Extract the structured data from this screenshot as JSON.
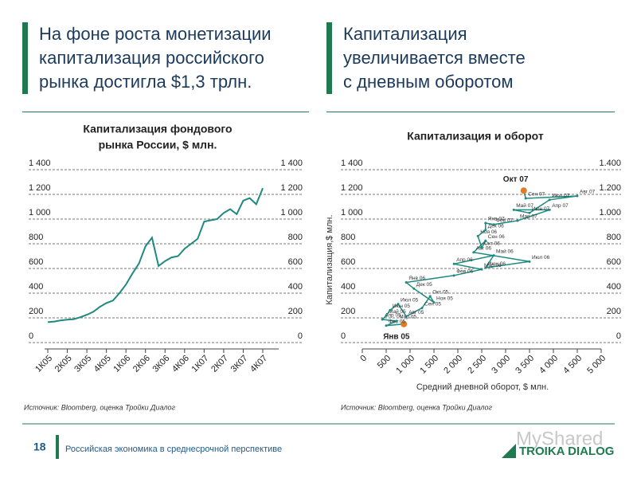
{
  "slide": {
    "left_heading": [
      "На фоне роста монетизации",
      "капитализация российского",
      "рынка достигла $1,3 трлн."
    ],
    "right_heading": [
      "Капитализация",
      "увеличивается вместе",
      "с дневным оборотом"
    ],
    "page_number": "18",
    "footer": "Российская экономика в среднесрочной перспективе",
    "watermark": "MyShared",
    "logo": "TROIKA DIALOG"
  },
  "chart_data": [
    {
      "type": "line",
      "title": [
        "Капитализация фондового",
        "рынка России, $ млн."
      ],
      "source": "Источник: Bloomberg, оценка Тройки Диалог",
      "categories": [
        "1К05",
        null,
        null,
        "2К05",
        null,
        null,
        "3К05",
        null,
        null,
        "4К05",
        null,
        null,
        "1К06",
        null,
        null,
        "2К06",
        null,
        null,
        "3К06",
        null,
        null,
        "4К06",
        null,
        null,
        "1К07",
        null,
        null,
        "2К07",
        null,
        null,
        "3К07",
        null,
        null,
        "4К07"
      ],
      "values": [
        165,
        170,
        180,
        185,
        190,
        205,
        225,
        250,
        290,
        320,
        340,
        400,
        470,
        560,
        640,
        780,
        850,
        620,
        660,
        690,
        700,
        760,
        800,
        840,
        980,
        990,
        1000,
        1050,
        1080,
        1040,
        1150,
        1170,
        1120,
        1250
      ],
      "color": "#1d8a80",
      "grid": true,
      "ylim": [
        0,
        1400
      ],
      "yticks": [
        0,
        200,
        400,
        600,
        800,
        {
          "value": 1000,
          "label": "1 000"
        },
        {
          "value": 1200,
          "label": "1 200"
        },
        {
          "value": 1400,
          "label": "1 400"
        }
      ],
      "y2lim": [
        0,
        1400
      ],
      "y2ticks": [
        0,
        200,
        400,
        600,
        800,
        {
          "value": 1000,
          "label": "1 000"
        },
        {
          "value": 1200,
          "label": "1 200"
        },
        {
          "value": 1400,
          "label": "1 400"
        }
      ]
    },
    {
      "type": "scatter",
      "title": "Капитализация и оборот",
      "source": "Источник: Bloomberg, оценка Тройки Диалог",
      "xlabel": "Средний дневной оборот, $ млн.",
      "ylabel": "Капитализация,$ млн.",
      "point_labels": [
        "Янв 05",
        "Фев 05",
        "Мар 05",
        "Апр 05",
        "Май 05",
        "Июн 05",
        "Июл 05",
        "Авг 05",
        "Сен 05",
        "Окт 05",
        "Ноя 05",
        "Дек 05",
        "Янв 06",
        "Фев 06",
        "Мар 06",
        "Апр 06",
        "Май 06",
        "Июн 06",
        "Июл 06",
        "Авг 06",
        "Сен 06",
        "Окт 06",
        "Ноя 06",
        "Дек 06",
        "Янв 07",
        "Фев 07",
        "Мар 07",
        "Апр 07",
        "Май 07",
        "Июн 07",
        "Июл 07",
        "Авг 07",
        "Сен 07",
        "Окт 07"
      ],
      "x": [
        870,
        500,
        720,
        420,
        500,
        580,
        750,
        920,
        1250,
        1420,
        1500,
        1080,
        920,
        1920,
        2500,
        1920,
        2750,
        2580,
        3500,
        2330,
        2580,
        2500,
        2420,
        2580,
        2580,
        2750,
        3250,
        3920,
        3170,
        3500,
        3920,
        4500,
        3420,
        3380
      ],
      "values": [
        150,
        137,
        175,
        187,
        218,
        262,
        312,
        212,
        280,
        375,
        325,
        437,
        487,
        543,
        593,
        637,
        706,
        606,
        656,
        731,
        825,
        768,
        862,
        912,
        968,
        956,
        987,
        1075,
        1075,
        1050,
        1156,
        1187,
        1168,
        1231
      ],
      "color": "#1d8a80",
      "highlight": [
        0,
        33
      ],
      "highlight_color": "#e07b26",
      "grid": true,
      "xlim": [
        0,
        5000
      ],
      "xticks": [
        0,
        500,
        {
          "value": 1000,
          "label": "1 000"
        },
        {
          "value": 1500,
          "label": "1 500"
        },
        {
          "value": 2000,
          "label": "2 000"
        },
        {
          "value": 2500,
          "label": "2 500"
        },
        {
          "value": 3000,
          "label": "3 000"
        },
        {
          "value": 3500,
          "label": "3 500"
        },
        {
          "value": 4000,
          "label": "4 000"
        },
        {
          "value": 4500,
          "label": "4 500"
        },
        {
          "value": 5000,
          "label": "5 000"
        }
      ],
      "ylim": [
        0,
        1400
      ],
      "yticks": [
        0,
        200,
        400,
        600,
        800,
        {
          "value": 1000,
          "label": "1 000"
        },
        {
          "value": 1200,
          "label": "1 200"
        },
        {
          "value": 1400,
          "label": "1 400"
        }
      ],
      "y2lim": [
        0,
        1400
      ],
      "y2ticks": [
        0,
        200,
        400,
        600,
        800,
        {
          "value": 1000,
          "label": "1.000"
        },
        {
          "value": 1200,
          "label": "1.200"
        },
        {
          "value": 1400,
          "label": "1.400"
        }
      ]
    }
  ]
}
